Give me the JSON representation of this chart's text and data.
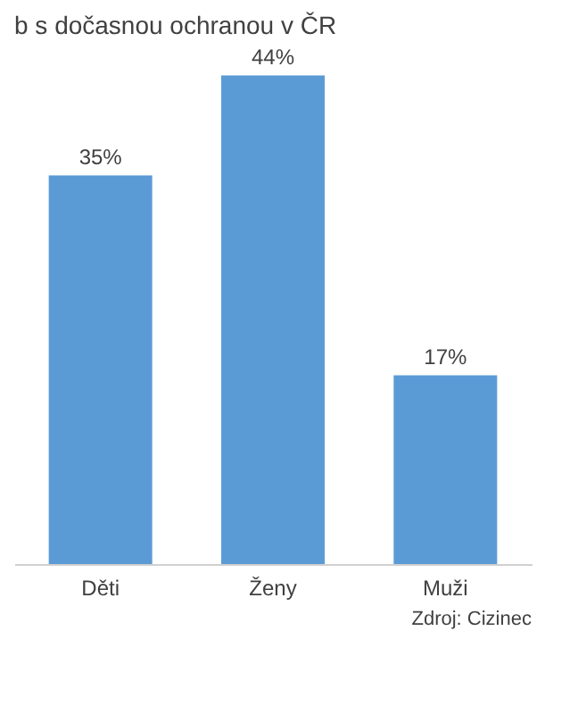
{
  "chart_data": {
    "type": "bar",
    "title": "b s dočasnou ochranou v ČR",
    "categories": [
      "Děti",
      "Ženy",
      "Muži"
    ],
    "values": [
      35,
      44,
      17
    ],
    "color": "#5b9bd5",
    "value_labels": [
      "35%",
      "44%",
      "17%"
    ],
    "tick_labels": "x",
    "grid": false,
    "annotations": [
      "Zdroj: Cizinec"
    ]
  }
}
